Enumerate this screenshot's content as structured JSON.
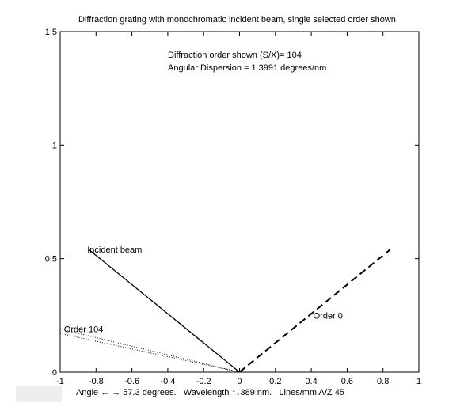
{
  "status_bar": {
    "text": "Angle ← → 57.3 degrees.   Wavelength ↑↓389 nm.   Lines/mm A/Z 45"
  },
  "chart_data": {
    "type": "line",
    "title": "Diffraction grating with monochromatic incident beam, single selected order shown.",
    "xlabel": "",
    "ylabel": "",
    "xlim": [
      -1,
      1
    ],
    "ylim": [
      0,
      1.5
    ],
    "x_ticks": [
      -1,
      -0.8,
      -0.6,
      -0.4,
      -0.2,
      0,
      0.2,
      0.4,
      0.6,
      0.8,
      1
    ],
    "x_tick_labels": [
      "-1",
      "-0.8",
      "-0.6",
      "-0.4",
      "-0.2",
      "0",
      "0.2",
      "0.4",
      "0.6",
      "0.8",
      "1"
    ],
    "y_ticks": [
      0,
      0.5,
      1,
      1.5
    ],
    "y_tick_labels": [
      "0",
      "0.5",
      "1",
      "1.5"
    ],
    "grid": false,
    "annotations": [
      "Diffraction order shown (S/X)= 104",
      "Angular Dispersion = 1.3991 degrees/nm"
    ],
    "series": [
      {
        "name": "Incident beam",
        "style": "solid",
        "color": "#000000",
        "x": [
          -0.84,
          0
        ],
        "y": [
          0.54,
          0
        ]
      },
      {
        "name": "Order 0",
        "style": "dashed",
        "color": "#000000",
        "x": [
          0,
          0.84
        ],
        "y": [
          0,
          0.54
        ]
      },
      {
        "name": "Order 104",
        "style": "dotted",
        "color": "#000000",
        "x": [
          -1,
          0
        ],
        "y": [
          0.19,
          0
        ]
      },
      {
        "name": "",
        "style": "dotted",
        "color": "#000000",
        "x": [
          -1,
          0
        ],
        "y": [
          0.17,
          0
        ]
      }
    ],
    "series_labels": [
      {
        "text": "Incident beam",
        "x": -0.84,
        "y": 0.54
      },
      {
        "text": "Order 0",
        "x": 0.42,
        "y": 0.25
      },
      {
        "text": "Order 104",
        "x": -0.97,
        "y": 0.19
      }
    ]
  }
}
